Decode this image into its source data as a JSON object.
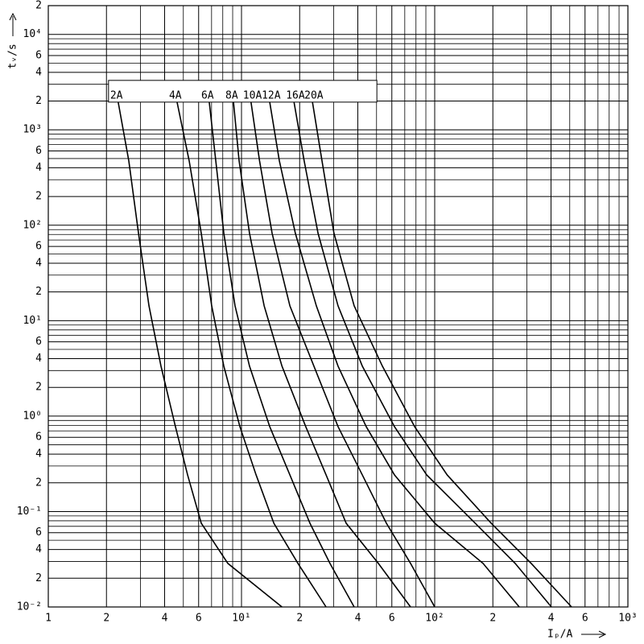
{
  "chart_data": {
    "type": "line",
    "x_label": "Iₚ/A",
    "y_label": "tᵥ/s",
    "xscale": "log",
    "yscale": "log",
    "grid": true,
    "xlim": [
      1,
      1000
    ],
    "ylim": [
      0.01,
      20000
    ],
    "xticks": [
      1,
      2,
      4,
      6,
      {
        "value": 10,
        "label": "10¹"
      },
      {
        "value": 20,
        "label": "2"
      },
      {
        "value": 40,
        "label": "4"
      },
      {
        "value": 60,
        "label": "6"
      },
      {
        "value": 100,
        "label": "10²"
      },
      {
        "value": 200,
        "label": "2"
      },
      {
        "value": 400,
        "label": "4"
      },
      {
        "value": 600,
        "label": "6"
      },
      {
        "value": 1000,
        "label": "10³"
      }
    ],
    "yticks": [
      {
        "value": 0.01,
        "label": "10⁻²"
      },
      {
        "value": 0.02,
        "label": "2"
      },
      {
        "value": 0.04,
        "label": "4"
      },
      {
        "value": 0.06,
        "label": "6"
      },
      {
        "value": 0.1,
        "label": "10⁻¹"
      },
      {
        "value": 0.2,
        "label": "2"
      },
      {
        "value": 0.4,
        "label": "4"
      },
      {
        "value": 0.6,
        "label": "6"
      },
      {
        "value": 1,
        "label": "10⁰"
      },
      2,
      4,
      6,
      {
        "value": 10,
        "label": "10¹"
      },
      {
        "value": 20,
        "label": "2"
      },
      {
        "value": 40,
        "label": "4"
      },
      {
        "value": 60,
        "label": "6"
      },
      {
        "value": 100,
        "label": "10²"
      },
      {
        "value": 200,
        "label": "2"
      },
      {
        "value": 400,
        "label": "4"
      },
      {
        "value": 600,
        "label": "6"
      },
      {
        "value": 1000,
        "label": "10³"
      },
      {
        "value": 2000,
        "label": "2"
      },
      {
        "value": 4000,
        "label": "4"
      },
      {
        "value": 6000,
        "label": "6"
      },
      {
        "value": 10000,
        "label": "10⁴"
      },
      {
        "value": 20000,
        "label": "2"
      }
    ],
    "x_minor_gridlines": [
      3,
      5,
      7,
      8,
      9,
      30,
      50,
      70,
      80,
      90,
      300,
      500,
      700,
      800,
      900
    ],
    "y_minor_gridlines": [
      0.03,
      0.05,
      0.07,
      0.08,
      0.09,
      0.3,
      0.5,
      0.7,
      0.8,
      0.9,
      3,
      5,
      7,
      8,
      9,
      30,
      50,
      70,
      80,
      90,
      300,
      500,
      700,
      800,
      900,
      3000,
      5000,
      7000,
      8000,
      9000
    ],
    "series": [
      {
        "name": "2A",
        "color": "#000000",
        "x": [
          2.3,
          2.61,
          2.93,
          3.32,
          3.83,
          4.55,
          5.26,
          6.19,
          8.5,
          16.2
        ],
        "values": [
          1950,
          473,
          82.4,
          14.3,
          3.34,
          0.776,
          0.242,
          0.0755,
          0.0286,
          0.01
        ]
      },
      {
        "name": "4A",
        "color": "#000000",
        "x": [
          4.64,
          5.36,
          6.19,
          7.01,
          8.1,
          9.81,
          11.9,
          14.7,
          19.6,
          27.4
        ],
        "values": [
          1950,
          473,
          82.4,
          14.3,
          3.34,
          0.776,
          0.242,
          0.0755,
          0.0286,
          0.01
        ]
      },
      {
        "name": "6A",
        "color": "#000000",
        "x": [
          6.81,
          7.36,
          8.1,
          9.26,
          11.0,
          14.0,
          17.8,
          22.6,
          28.7,
          38.3
        ],
        "values": [
          1950,
          473,
          82.4,
          14.3,
          3.34,
          0.776,
          0.242,
          0.0755,
          0.0286,
          0.01
        ]
      },
      {
        "name": "8A",
        "color": "#000000",
        "x": [
          9.09,
          9.72,
          11.0,
          13.1,
          16.2,
          21.5,
          27.4,
          34.8,
          51.1,
          75.0
        ],
        "values": [
          1950,
          473,
          82.4,
          14.3,
          3.34,
          0.776,
          0.242,
          0.0755,
          0.0286,
          0.01
        ]
      },
      {
        "name": "10A",
        "color": "#000000",
        "x": [
          11.2,
          12.4,
          14.4,
          17.8,
          23.7,
          31.6,
          42.2,
          56.2,
          75.0,
          100
        ],
        "values": [
          1950,
          473,
          82.4,
          14.3,
          3.34,
          0.776,
          0.242,
          0.0755,
          0.0286,
          0.01
        ]
      },
      {
        "name": "12A",
        "color": "#000000",
        "x": [
          14.0,
          15.7,
          19.0,
          24.4,
          31.6,
          44.2,
          61.9,
          100,
          178,
          274
        ],
        "values": [
          1950,
          473,
          82.4,
          14.3,
          3.34,
          0.776,
          0.242,
          0.0755,
          0.0286,
          0.01
        ]
      },
      {
        "name": "16A",
        "color": "#000000",
        "x": [
          18.7,
          21.1,
          24.9,
          31.6,
          42.2,
          61.9,
          90.9,
          162,
          261,
          402
        ],
        "values": [
          1950,
          473,
          82.4,
          14.3,
          3.34,
          0.776,
          0.242,
          0.0755,
          0.0286,
          0.01
        ]
      },
      {
        "name": "20A",
        "color": "#000000",
        "x": [
          23.3,
          26.1,
          30.1,
          38.3,
          53.6,
          78.7,
          116,
          196,
          316,
          511
        ],
        "values": [
          1950,
          473,
          82.4,
          14.3,
          3.34,
          0.776,
          0.242,
          0.0755,
          0.0286,
          0.01
        ]
      }
    ]
  }
}
